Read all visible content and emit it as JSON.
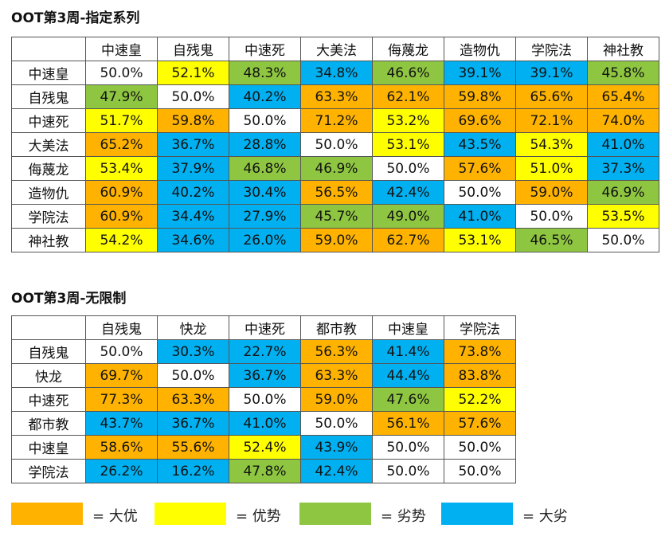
{
  "legend_colors": {
    "da_you": "#ffb300",
    "you_shi": "#ffff00",
    "lie_shi": "#8ec641",
    "da_lie": "#00b0f0",
    "even": "#ffffff"
  },
  "tables": [
    {
      "title": "OOT第3周-指定系列",
      "columns": [
        "中速皇",
        "自残鬼",
        "中速死",
        "大美法",
        "侮蔑龙",
        "造物仇",
        "学院法",
        "神社教"
      ],
      "rows": [
        {
          "label": "中速皇",
          "cells": [
            {
              "v": "50.0%",
              "c": "eq"
            },
            {
              "v": "52.1%",
              "c": "yo"
            },
            {
              "v": "48.3%",
              "c": "lie"
            },
            {
              "v": "34.8%",
              "c": "dl"
            },
            {
              "v": "46.6%",
              "c": "lie"
            },
            {
              "v": "39.1%",
              "c": "dl"
            },
            {
              "v": "39.1%",
              "c": "dl"
            },
            {
              "v": "45.8%",
              "c": "lie"
            }
          ]
        },
        {
          "label": "自残鬼",
          "cells": [
            {
              "v": "47.9%",
              "c": "lie"
            },
            {
              "v": "50.0%",
              "c": "eq"
            },
            {
              "v": "40.2%",
              "c": "dl"
            },
            {
              "v": "63.3%",
              "c": "da"
            },
            {
              "v": "62.1%",
              "c": "da"
            },
            {
              "v": "59.8%",
              "c": "da"
            },
            {
              "v": "65.6%",
              "c": "da"
            },
            {
              "v": "65.4%",
              "c": "da"
            }
          ]
        },
        {
          "label": "中速死",
          "cells": [
            {
              "v": "51.7%",
              "c": "yo"
            },
            {
              "v": "59.8%",
              "c": "da"
            },
            {
              "v": "50.0%",
              "c": "eq"
            },
            {
              "v": "71.2%",
              "c": "da"
            },
            {
              "v": "53.2%",
              "c": "yo"
            },
            {
              "v": "69.6%",
              "c": "da"
            },
            {
              "v": "72.1%",
              "c": "da"
            },
            {
              "v": "74.0%",
              "c": "da"
            }
          ]
        },
        {
          "label": "大美法",
          "cells": [
            {
              "v": "65.2%",
              "c": "da"
            },
            {
              "v": "36.7%",
              "c": "dl"
            },
            {
              "v": "28.8%",
              "c": "dl"
            },
            {
              "v": "50.0%",
              "c": "eq"
            },
            {
              "v": "53.1%",
              "c": "yo"
            },
            {
              "v": "43.5%",
              "c": "dl"
            },
            {
              "v": "54.3%",
              "c": "yo"
            },
            {
              "v": "41.0%",
              "c": "dl"
            }
          ]
        },
        {
          "label": "侮蔑龙",
          "cells": [
            {
              "v": "53.4%",
              "c": "yo"
            },
            {
              "v": "37.9%",
              "c": "dl"
            },
            {
              "v": "46.8%",
              "c": "lie"
            },
            {
              "v": "46.9%",
              "c": "lie"
            },
            {
              "v": "50.0%",
              "c": "eq"
            },
            {
              "v": "57.6%",
              "c": "da"
            },
            {
              "v": "51.0%",
              "c": "yo"
            },
            {
              "v": "37.3%",
              "c": "dl"
            }
          ]
        },
        {
          "label": "造物仇",
          "cells": [
            {
              "v": "60.9%",
              "c": "da"
            },
            {
              "v": "40.2%",
              "c": "dl"
            },
            {
              "v": "30.4%",
              "c": "dl"
            },
            {
              "v": "56.5%",
              "c": "da"
            },
            {
              "v": "42.4%",
              "c": "dl"
            },
            {
              "v": "50.0%",
              "c": "eq"
            },
            {
              "v": "59.0%",
              "c": "da"
            },
            {
              "v": "46.9%",
              "c": "lie"
            }
          ]
        },
        {
          "label": "学院法",
          "cells": [
            {
              "v": "60.9%",
              "c": "da"
            },
            {
              "v": "34.4%",
              "c": "dl"
            },
            {
              "v": "27.9%",
              "c": "dl"
            },
            {
              "v": "45.7%",
              "c": "lie"
            },
            {
              "v": "49.0%",
              "c": "lie"
            },
            {
              "v": "41.0%",
              "c": "dl"
            },
            {
              "v": "50.0%",
              "c": "eq"
            },
            {
              "v": "53.5%",
              "c": "yo"
            }
          ]
        },
        {
          "label": "神社教",
          "cells": [
            {
              "v": "54.2%",
              "c": "yo"
            },
            {
              "v": "34.6%",
              "c": "dl"
            },
            {
              "v": "26.0%",
              "c": "dl"
            },
            {
              "v": "59.0%",
              "c": "da"
            },
            {
              "v": "62.7%",
              "c": "da"
            },
            {
              "v": "53.1%",
              "c": "yo"
            },
            {
              "v": "46.5%",
              "c": "lie"
            },
            {
              "v": "50.0%",
              "c": "eq"
            }
          ]
        }
      ]
    },
    {
      "title": "OOT第3周-无限制",
      "columns": [
        "自残鬼",
        "快龙",
        "中速死",
        "都市教",
        "中速皇",
        "学院法"
      ],
      "rows": [
        {
          "label": "自残鬼",
          "cells": [
            {
              "v": "50.0%",
              "c": "eq"
            },
            {
              "v": "30.3%",
              "c": "dl"
            },
            {
              "v": "22.7%",
              "c": "dl"
            },
            {
              "v": "56.3%",
              "c": "da"
            },
            {
              "v": "41.4%",
              "c": "dl"
            },
            {
              "v": "73.8%",
              "c": "da"
            }
          ]
        },
        {
          "label": "快龙",
          "cells": [
            {
              "v": "69.7%",
              "c": "da"
            },
            {
              "v": "50.0%",
              "c": "eq"
            },
            {
              "v": "36.7%",
              "c": "dl"
            },
            {
              "v": "63.3%",
              "c": "da"
            },
            {
              "v": "44.4%",
              "c": "dl"
            },
            {
              "v": "83.8%",
              "c": "da"
            }
          ]
        },
        {
          "label": "中速死",
          "cells": [
            {
              "v": "77.3%",
              "c": "da"
            },
            {
              "v": "63.3%",
              "c": "da"
            },
            {
              "v": "50.0%",
              "c": "eq"
            },
            {
              "v": "59.0%",
              "c": "da"
            },
            {
              "v": "47.6%",
              "c": "lie"
            },
            {
              "v": "52.2%",
              "c": "yo"
            }
          ]
        },
        {
          "label": "都市教",
          "cells": [
            {
              "v": "43.7%",
              "c": "dl"
            },
            {
              "v": "36.7%",
              "c": "dl"
            },
            {
              "v": "41.0%",
              "c": "dl"
            },
            {
              "v": "50.0%",
              "c": "eq"
            },
            {
              "v": "56.1%",
              "c": "da"
            },
            {
              "v": "57.6%",
              "c": "da"
            }
          ]
        },
        {
          "label": "中速皇",
          "cells": [
            {
              "v": "58.6%",
              "c": "da"
            },
            {
              "v": "55.6%",
              "c": "da"
            },
            {
              "v": "52.4%",
              "c": "yo"
            },
            {
              "v": "43.9%",
              "c": "dl"
            },
            {
              "v": "50.0%",
              "c": "eq"
            },
            {
              "v": "50.0%",
              "c": "eq"
            }
          ]
        },
        {
          "label": "学院法",
          "cells": [
            {
              "v": "26.2%",
              "c": "dl"
            },
            {
              "v": "16.2%",
              "c": "dl"
            },
            {
              "v": "47.8%",
              "c": "lie"
            },
            {
              "v": "42.4%",
              "c": "dl"
            },
            {
              "v": "50.0%",
              "c": "eq"
            },
            {
              "v": "50.0%",
              "c": "eq"
            }
          ]
        }
      ]
    }
  ],
  "legend": [
    {
      "key": "da",
      "label": "= 大优"
    },
    {
      "key": "yo",
      "label": "= 优势"
    },
    {
      "key": "lie",
      "label": "= 劣势"
    },
    {
      "key": "dl",
      "label": "= 大劣"
    }
  ]
}
